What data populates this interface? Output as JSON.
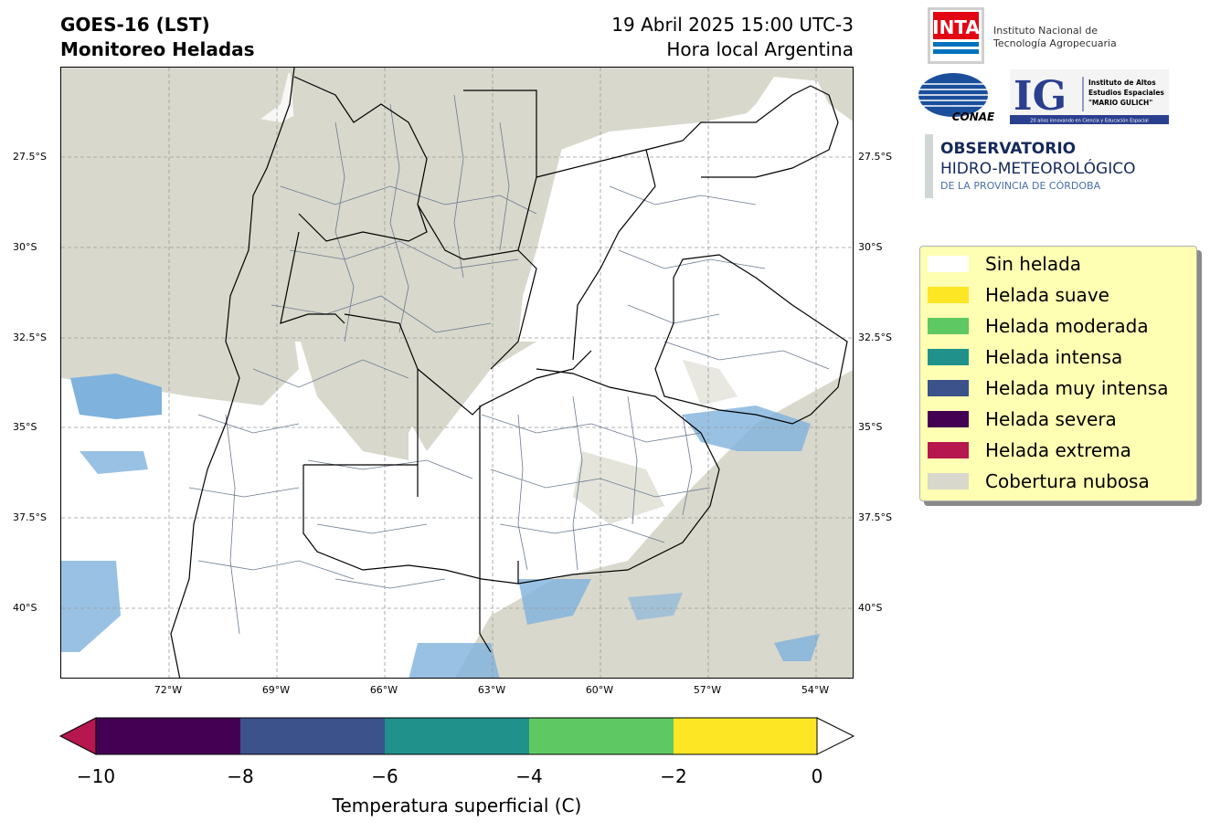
{
  "header": {
    "product": "GOES-16 (LST)",
    "subtitle": "Monitoreo Heladas",
    "datetime": "19 Abril 2025 15:00 UTC-3",
    "timezone": "Hora local Argentina"
  },
  "axes": {
    "lat_labels": [
      "27.5°S",
      "30°S",
      "32.5°S",
      "35°S",
      "37.5°S",
      "40°S"
    ],
    "lon_labels": [
      "72°W",
      "69°W",
      "66°W",
      "63°W",
      "60°W",
      "57°W",
      "54°W"
    ]
  },
  "legend": {
    "items": [
      {
        "label": "Sin helada",
        "color": "#ffffff"
      },
      {
        "label": "Helada suave",
        "color": "#fde725"
      },
      {
        "label": "Helada moderada",
        "color": "#5ec962"
      },
      {
        "label": "Helada intensa",
        "color": "#21918c"
      },
      {
        "label": "Helada muy intensa",
        "color": "#3b528b"
      },
      {
        "label": "Helada severa",
        "color": "#440154"
      },
      {
        "label": "Helada extrema",
        "color": "#b5174e"
      },
      {
        "label": "Cobertura nubosa",
        "color": "#d8d8cc"
      }
    ]
  },
  "colorbar": {
    "ticks": [
      "−10",
      "−8",
      "−6",
      "−4",
      "−2",
      "0"
    ],
    "label": "Temperatura superficial (C)",
    "under_color": "#b5174e",
    "over_color": "#ffffff",
    "segments": [
      "#440154",
      "#3b528b",
      "#21918c",
      "#5ec962",
      "#fde725"
    ]
  },
  "logos": {
    "inta_mark": "INTA",
    "inta_name_line1": "Instituto Nacional de",
    "inta_name_line2": "Tecnología Agropecuaria",
    "conae_mark": "CONAE",
    "ig_mark": "IG",
    "ig_line1": "Instituto de Altos",
    "ig_line2": "Estudios Espaciales",
    "ig_line3": "\"MARIO GULICH\"",
    "ig_tagline": "20 años innovando en Ciencia y Educación Espacial",
    "obs_line1": "OBSERVATORIO",
    "obs_line2": "HIDRO-METEOROLÓGICO",
    "obs_line3": "DE LA PROVINCIA DE CÓRDOBA"
  },
  "colors": {
    "cloud": "#d8d8cc",
    "ice_blue": "#7fb2dd",
    "boundary_minor": "#6b7a8f",
    "boundary_major": "#000000",
    "grid": "#9a9a9a"
  }
}
